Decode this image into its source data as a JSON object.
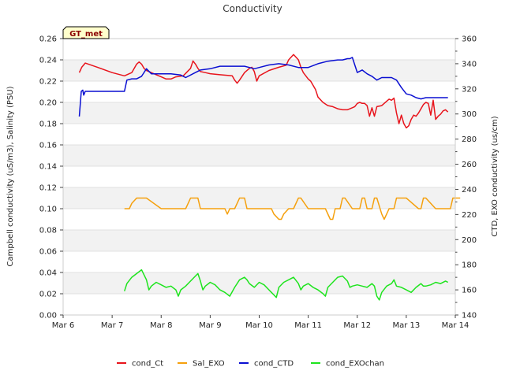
{
  "chart_data": {
    "type": "line",
    "title": "Conductivity",
    "badge": "GT_met",
    "ylabel_left": "Campbell conductivity (uS/m3), Salinity (PSU)",
    "ylabel_right": "CTD, EXO conductivity (us/cm)",
    "x_tick_labels": [
      "Mar 6",
      "Mar 7",
      "Mar 8",
      "Mar 9",
      "Mar 10",
      "Mar 11",
      "Mar 12",
      "Mar 13",
      "Mar 14"
    ],
    "x_range": [
      6,
      14
    ],
    "y_left_range": [
      0,
      0.26
    ],
    "y_left_ticks": [
      "0.00",
      "0.02",
      "0.04",
      "0.06",
      "0.08",
      "0.10",
      "0.12",
      "0.14",
      "0.16",
      "0.18",
      "0.20",
      "0.22",
      "0.24",
      "0.26"
    ],
    "y_right_range": [
      140,
      360
    ],
    "y_right_ticks": [
      "140",
      "160",
      "180",
      "200",
      "220",
      "240",
      "260",
      "280",
      "300",
      "320",
      "340",
      "360"
    ],
    "grid": "horizontal bands",
    "legend_position": "bottom",
    "series": [
      {
        "name": "cond_Ct",
        "axis": "left",
        "color": "#e8141c",
        "x": [
          6.33,
          6.38,
          6.45,
          6.7,
          7.0,
          7.25,
          7.4,
          7.5,
          7.55,
          7.6,
          7.65,
          7.7,
          7.8,
          7.9,
          8.0,
          8.1,
          8.2,
          8.3,
          8.45,
          8.6,
          8.65,
          8.7,
          8.75,
          8.8,
          8.9,
          9.0,
          9.2,
          9.45,
          9.5,
          9.55,
          9.6,
          9.7,
          9.8,
          9.85,
          9.9,
          9.95,
          10.0,
          10.2,
          10.4,
          10.55,
          10.6,
          10.7,
          10.8,
          10.85,
          10.9,
          11.0,
          11.05,
          11.1,
          11.15,
          11.2,
          11.3,
          11.4,
          11.5,
          11.6,
          11.7,
          11.8,
          11.9,
          11.95,
          12.0,
          12.05,
          12.1,
          12.15,
          12.2,
          12.25,
          12.3,
          12.35,
          12.4,
          12.5,
          12.6,
          12.65,
          12.7,
          12.75,
          12.8,
          12.85,
          12.9,
          12.95,
          13.0,
          13.05,
          13.1,
          13.15,
          13.2,
          13.25,
          13.3,
          13.35,
          13.4,
          13.45,
          13.5,
          13.55,
          13.6,
          13.65,
          13.7,
          13.75,
          13.8,
          13.85
        ],
        "y": [
          0.228,
          0.233,
          0.237,
          0.233,
          0.228,
          0.225,
          0.228,
          0.236,
          0.238,
          0.236,
          0.232,
          0.23,
          0.228,
          0.226,
          0.224,
          0.222,
          0.222,
          0.224,
          0.225,
          0.232,
          0.239,
          0.236,
          0.232,
          0.229,
          0.228,
          0.227,
          0.226,
          0.225,
          0.221,
          0.218,
          0.221,
          0.228,
          0.232,
          0.233,
          0.229,
          0.22,
          0.225,
          0.23,
          0.233,
          0.235,
          0.24,
          0.245,
          0.24,
          0.233,
          0.228,
          0.222,
          0.22,
          0.216,
          0.212,
          0.205,
          0.2,
          0.197,
          0.196,
          0.194,
          0.193,
          0.193,
          0.195,
          0.196,
          0.199,
          0.2,
          0.199,
          0.199,
          0.197,
          0.187,
          0.195,
          0.187,
          0.196,
          0.197,
          0.201,
          0.203,
          0.202,
          0.204,
          0.19,
          0.18,
          0.188,
          0.18,
          0.176,
          0.178,
          0.184,
          0.188,
          0.187,
          0.19,
          0.194,
          0.198,
          0.2,
          0.199,
          0.188,
          0.202,
          0.184,
          0.187,
          0.189,
          0.192,
          0.193,
          0.191
        ]
      },
      {
        "name": "Sal_EXO",
        "axis": "left",
        "color": "#f5a00d",
        "x": [
          7.25,
          7.35,
          7.4,
          7.5,
          7.6,
          7.65,
          7.7,
          8.0,
          8.3,
          8.5,
          8.55,
          8.6,
          8.75,
          8.8,
          9.0,
          9.3,
          9.35,
          9.4,
          9.5,
          9.55,
          9.6,
          9.7,
          9.75,
          10.0,
          10.25,
          10.3,
          10.4,
          10.45,
          10.5,
          10.6,
          10.65,
          10.7,
          10.8,
          10.85,
          11.0,
          11.3,
          11.35,
          11.45,
          11.5,
          11.55,
          11.6,
          11.65,
          11.7,
          11.75,
          11.9,
          12.0,
          12.05,
          12.1,
          12.15,
          12.2,
          12.3,
          12.35,
          12.4,
          12.5,
          12.55,
          12.6,
          12.65,
          12.7,
          12.75,
          12.8,
          13.0,
          13.25,
          13.3,
          13.35,
          13.4,
          13.6,
          13.85,
          13.9,
          13.95,
          14.1
        ],
        "y": [
          0.1,
          0.1,
          0.105,
          0.11,
          0.11,
          0.11,
          0.11,
          0.1,
          0.1,
          0.1,
          0.105,
          0.11,
          0.11,
          0.1,
          0.1,
          0.1,
          0.095,
          0.1,
          0.1,
          0.105,
          0.11,
          0.11,
          0.1,
          0.1,
          0.1,
          0.095,
          0.09,
          0.09,
          0.095,
          0.1,
          0.1,
          0.1,
          0.11,
          0.11,
          0.1,
          0.1,
          0.1,
          0.09,
          0.09,
          0.1,
          0.1,
          0.1,
          0.11,
          0.11,
          0.1,
          0.1,
          0.1,
          0.11,
          0.11,
          0.1,
          0.1,
          0.11,
          0.11,
          0.095,
          0.09,
          0.095,
          0.1,
          0.1,
          0.1,
          0.11,
          0.11,
          0.1,
          0.1,
          0.11,
          0.11,
          0.1,
          0.1,
          0.1,
          0.11,
          0.11
        ]
      },
      {
        "name": "cond_CTD",
        "axis": "right",
        "color": "#0a0fd2",
        "x": [
          6.33,
          6.37,
          6.4,
          6.42,
          6.45,
          6.5,
          7.0,
          7.25,
          7.3,
          7.4,
          7.5,
          7.6,
          7.65,
          7.7,
          7.8,
          8.0,
          8.2,
          8.4,
          8.5,
          8.7,
          8.8,
          9.0,
          9.2,
          9.4,
          9.6,
          9.7,
          9.8,
          9.9,
          10.0,
          10.2,
          10.4,
          10.6,
          10.8,
          11.0,
          11.2,
          11.4,
          11.6,
          11.7,
          11.8,
          11.85,
          11.9,
          12.0,
          12.1,
          12.2,
          12.3,
          12.4,
          12.5,
          12.6,
          12.7,
          12.8,
          12.9,
          13.0,
          13.1,
          13.2,
          13.3,
          13.4,
          13.5,
          13.6,
          13.7,
          13.8,
          13.85
        ],
        "y": [
          298,
          318,
          319,
          315,
          318,
          318,
          318,
          318,
          327,
          328,
          328,
          330,
          333,
          336,
          332,
          332,
          332,
          331,
          329,
          333,
          335,
          336,
          338,
          338,
          338,
          338,
          337,
          336,
          337,
          339,
          340,
          339,
          337,
          337,
          340,
          342,
          343,
          343,
          344,
          344,
          345,
          333,
          335,
          332,
          330,
          327,
          329,
          329,
          329,
          327,
          321,
          316,
          315,
          313,
          312,
          313,
          313,
          313,
          313,
          313,
          313
        ]
      },
      {
        "name": "cond_EXOchan",
        "axis": "right",
        "color": "#1ee41e",
        "x": [
          7.25,
          7.3,
          7.4,
          7.5,
          7.6,
          7.65,
          7.7,
          7.75,
          7.8,
          7.9,
          8.0,
          8.1,
          8.2,
          8.3,
          8.35,
          8.4,
          8.5,
          8.6,
          8.7,
          8.75,
          8.8,
          8.85,
          8.9,
          9.0,
          9.1,
          9.2,
          9.3,
          9.4,
          9.5,
          9.6,
          9.7,
          9.75,
          9.8,
          9.9,
          10.0,
          10.1,
          10.2,
          10.25,
          10.3,
          10.35,
          10.4,
          10.5,
          10.6,
          10.7,
          10.8,
          10.85,
          10.9,
          11.0,
          11.1,
          11.2,
          11.3,
          11.35,
          11.4,
          11.5,
          11.6,
          11.7,
          11.8,
          11.85,
          11.9,
          12.0,
          12.1,
          12.2,
          12.3,
          12.35,
          12.4,
          12.45,
          12.5,
          12.6,
          12.7,
          12.75,
          12.8,
          12.9,
          13.0,
          13.1,
          13.2,
          13.3,
          13.35,
          13.4,
          13.5,
          13.6,
          13.7,
          13.8,
          13.85
        ],
        "y": [
          159,
          165,
          170,
          173,
          176,
          172,
          168,
          160,
          163,
          166,
          164,
          162,
          163,
          160,
          155,
          160,
          163,
          167,
          171,
          173,
          167,
          160,
          163,
          166,
          164,
          160,
          158,
          155,
          162,
          168,
          170,
          168,
          165,
          162,
          166,
          164,
          160,
          158,
          156,
          154,
          162,
          166,
          168,
          170,
          165,
          160,
          163,
          165,
          162,
          160,
          157,
          155,
          162,
          166,
          170,
          171,
          167,
          162,
          163,
          164,
          163,
          162,
          165,
          163,
          155,
          152,
          158,
          163,
          165,
          168,
          163,
          162,
          160,
          158,
          162,
          165,
          163,
          163,
          164,
          166,
          165,
          167,
          166
        ]
      }
    ]
  }
}
